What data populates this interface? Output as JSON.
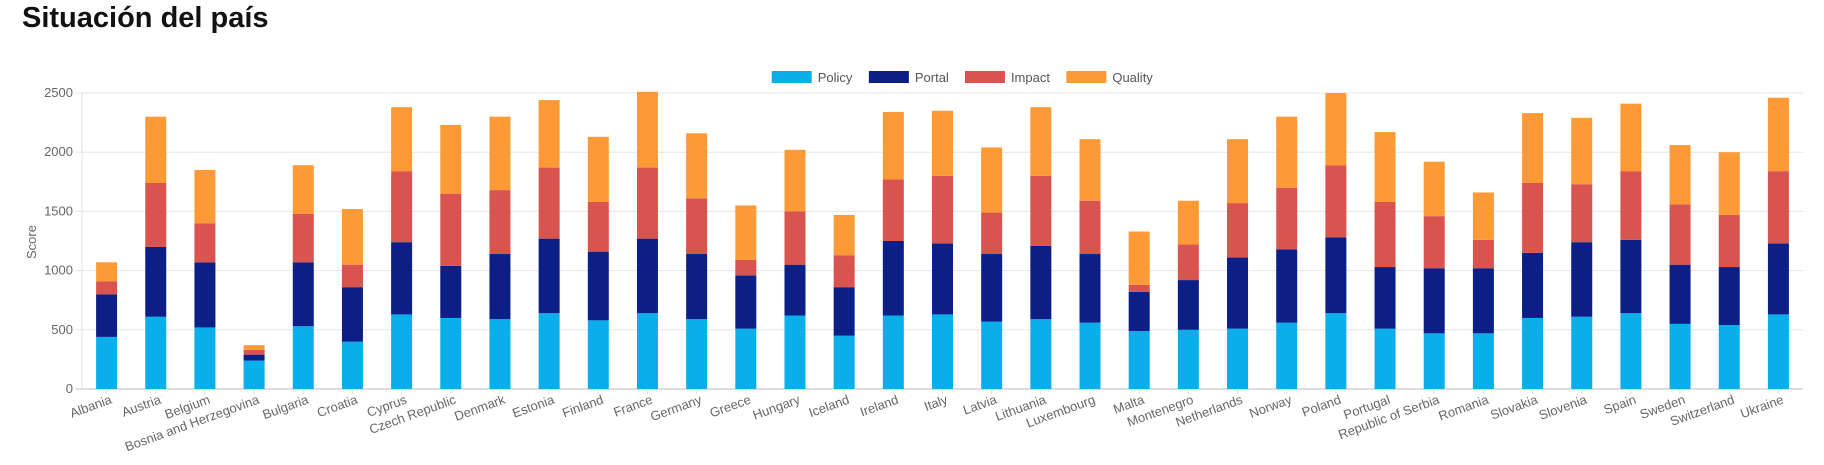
{
  "page": {
    "title": "Situación del país"
  },
  "chart_data": {
    "type": "bar",
    "stacked": true,
    "title": "",
    "xlabel": "",
    "ylabel": "Score",
    "ylim": [
      0,
      2500
    ],
    "yticks": [
      0,
      500,
      1000,
      1500,
      2000,
      2500
    ],
    "grid": true,
    "legend_position": "top-center",
    "categories": [
      "Albania",
      "Austria",
      "Belgium",
      "Bosnia and Herzegovina",
      "Bulgaria",
      "Croatia",
      "Cyprus",
      "Czech Republic",
      "Denmark",
      "Estonia",
      "Finland",
      "France",
      "Germany",
      "Greece",
      "Hungary",
      "Iceland",
      "Ireland",
      "Italy",
      "Latvia",
      "Lithuania",
      "Luxembourg",
      "Malta",
      "Montenegro",
      "Netherlands",
      "Norway",
      "Poland",
      "Portugal",
      "Republic of Serbia",
      "Romania",
      "Slovakia",
      "Slovenia",
      "Spain",
      "Sweden",
      "Switzerland",
      "Ukraine"
    ],
    "series": [
      {
        "name": "Policy",
        "color": "#0aaeeb",
        "values": [
          440,
          610,
          520,
          240,
          530,
          400,
          630,
          600,
          590,
          640,
          580,
          640,
          590,
          510,
          620,
          450,
          620,
          630,
          570,
          590,
          560,
          490,
          500,
          510,
          560,
          640,
          510,
          470,
          470,
          600,
          610,
          640,
          550,
          540,
          630
        ]
      },
      {
        "name": "Portal",
        "color": "#0b1f86",
        "values": [
          360,
          590,
          550,
          50,
          540,
          460,
          610,
          440,
          550,
          630,
          580,
          630,
          550,
          450,
          430,
          410,
          630,
          600,
          570,
          620,
          580,
          330,
          420,
          600,
          620,
          640,
          520,
          550,
          550,
          550,
          630,
          620,
          500,
          490,
          600
        ]
      },
      {
        "name": "Impact",
        "color": "#d9534f",
        "values": [
          110,
          540,
          330,
          40,
          410,
          190,
          600,
          610,
          540,
          600,
          420,
          600,
          470,
          130,
          450,
          270,
          520,
          570,
          350,
          590,
          450,
          60,
          300,
          460,
          520,
          610,
          550,
          440,
          240,
          590,
          490,
          580,
          510,
          440,
          610
        ]
      },
      {
        "name": "Quality",
        "color": "#fc9a36",
        "values": [
          160,
          560,
          450,
          40,
          410,
          470,
          540,
          580,
          620,
          570,
          550,
          640,
          550,
          460,
          520,
          340,
          570,
          550,
          550,
          580,
          520,
          450,
          370,
          540,
          600,
          610,
          590,
          460,
          400,
          590,
          560,
          570,
          500,
          530,
          620
        ]
      }
    ]
  }
}
